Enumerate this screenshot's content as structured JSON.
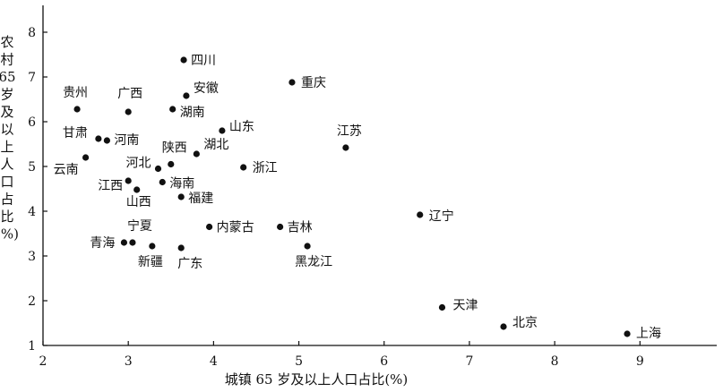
{
  "chart_data": {
    "type": "scatter",
    "xlabel": "城镇 65 岁及以上人口占比(%)",
    "ylabel_chars": [
      "农",
      "村",
      "65",
      "岁",
      "及",
      "以",
      "上",
      "人",
      "口",
      "占",
      "比",
      "(%)"
    ],
    "xlim": [
      2,
      9.9
    ],
    "ylim": [
      1,
      8.6
    ],
    "xticks": [
      2,
      3,
      4,
      5,
      6,
      7,
      8,
      9
    ],
    "yticks": [
      1,
      2,
      3,
      4,
      5,
      6,
      7,
      8
    ],
    "grid": false,
    "points": [
      {
        "label": "四川",
        "x": 3.65,
        "y": 7.38
      },
      {
        "label": "重庆",
        "x": 4.92,
        "y": 6.88
      },
      {
        "label": "贵州",
        "x": 2.4,
        "y": 6.28
      },
      {
        "label": "广西",
        "x": 3.0,
        "y": 6.22
      },
      {
        "label": "安徽",
        "x": 3.68,
        "y": 6.58
      },
      {
        "label": "湖南",
        "x": 3.52,
        "y": 6.28
      },
      {
        "label": "山东",
        "x": 4.1,
        "y": 5.8
      },
      {
        "label": "甘肃",
        "x": 2.65,
        "y": 5.62
      },
      {
        "label": "河南",
        "x": 2.75,
        "y": 5.58
      },
      {
        "label": "江苏",
        "x": 5.55,
        "y": 5.42
      },
      {
        "label": "湖北",
        "x": 3.8,
        "y": 5.28
      },
      {
        "label": "陕西",
        "x": 3.5,
        "y": 5.05
      },
      {
        "label": "云南",
        "x": 2.5,
        "y": 5.2
      },
      {
        "label": "河北",
        "x": 3.35,
        "y": 4.95
      },
      {
        "label": "浙江",
        "x": 4.35,
        "y": 4.98
      },
      {
        "label": "海南",
        "x": 3.4,
        "y": 4.65
      },
      {
        "label": "江西",
        "x": 3.0,
        "y": 4.68
      },
      {
        "label": "山西",
        "x": 3.1,
        "y": 4.48
      },
      {
        "label": "福建",
        "x": 3.62,
        "y": 4.32
      },
      {
        "label": "辽宁",
        "x": 6.42,
        "y": 3.92
      },
      {
        "label": "内蒙古",
        "x": 3.95,
        "y": 3.65
      },
      {
        "label": "吉林",
        "x": 4.78,
        "y": 3.65
      },
      {
        "label": "宁夏",
        "x": 3.05,
        "y": 3.3
      },
      {
        "label": "青海",
        "x": 2.95,
        "y": 3.3
      },
      {
        "label": "新疆",
        "x": 3.28,
        "y": 3.22
      },
      {
        "label": "广东",
        "x": 3.62,
        "y": 3.18
      },
      {
        "label": "黑龙江",
        "x": 5.1,
        "y": 3.22
      },
      {
        "label": "天津",
        "x": 6.68,
        "y": 1.85
      },
      {
        "label": "北京",
        "x": 7.4,
        "y": 1.42
      },
      {
        "label": "上海",
        "x": 8.85,
        "y": 1.26
      }
    ]
  }
}
